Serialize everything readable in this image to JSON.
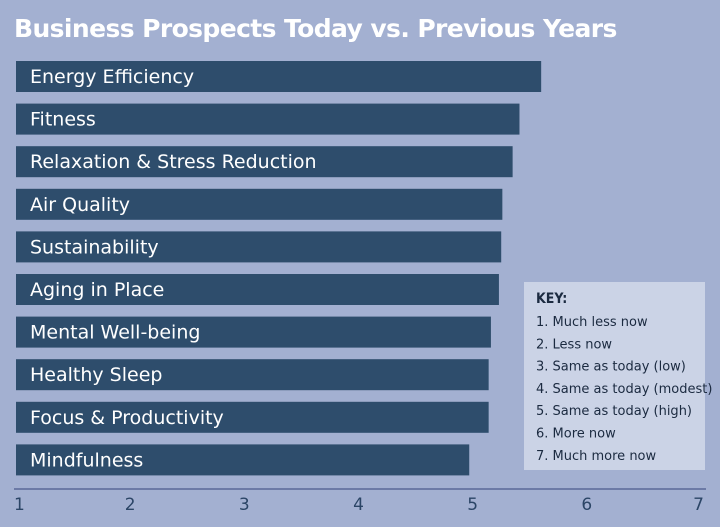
{
  "chart_data": {
    "type": "bar",
    "orientation": "horizontal",
    "title": "Business Prospects Today vs. Previous Years",
    "categories": [
      "Energy Efficiency",
      "Fitness",
      "Relaxation & Stress Reduction",
      "Air Quality",
      "Sustainability",
      "Aging in Place",
      "Mental Well-being",
      "Healthy Sleep",
      "Focus & Productivity",
      "Mindfulness"
    ],
    "values": [
      5.6,
      5.41,
      5.35,
      5.26,
      5.25,
      5.23,
      5.16,
      5.14,
      5.14,
      4.97
    ],
    "xlim": [
      1,
      7
    ],
    "xticks": [
      "1",
      "2",
      "3",
      "4",
      "5",
      "6",
      "7"
    ],
    "grid": false,
    "key": {
      "title": "KEY:",
      "items": [
        "1. Much less now",
        "2. Less now",
        "3. Same as today (low)",
        "4. Same as today (modest)",
        "5. Same as today (high)",
        "6. More now",
        "7. Much more now"
      ],
      "placement": "bottom-right"
    }
  },
  "colors": {
    "background": "#a3b0d1",
    "bar": "#2e4d6c",
    "key_background": "#cbd3e6",
    "title": "#ffffff"
  }
}
